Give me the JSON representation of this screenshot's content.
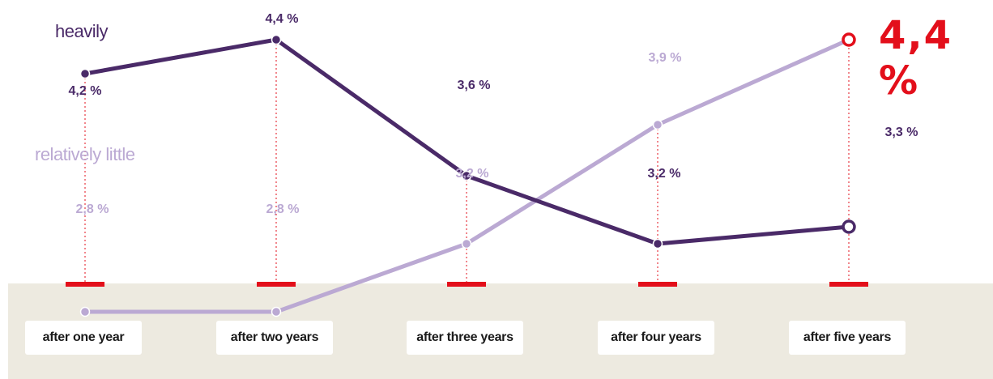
{
  "colors": {
    "heavily": "#4a2a68",
    "relatively_little": "#bba9d3",
    "accent": "#e30f1b",
    "ground": "#edeae0"
  },
  "legend": {
    "heavily": "heavily",
    "relatively_little": "relatively little"
  },
  "highlight": "4,4 %",
  "chart_data": {
    "type": "line",
    "categories": [
      "after one year",
      "after two years",
      "after three years",
      "after four years",
      "after five years"
    ],
    "series": [
      {
        "name": "heavily",
        "values": [
          4.2,
          4.4,
          3.6,
          3.2,
          3.3
        ],
        "labels": [
          "4,2 %",
          "4,4 %",
          "3,6 %",
          "3,2 %",
          "3,3 %"
        ]
      },
      {
        "name": "relatively little",
        "values": [
          2.8,
          2.8,
          3.2,
          3.9,
          4.4
        ],
        "labels": [
          "2,8 %",
          "2,8 %",
          "3,2 %",
          "3,9 %",
          "4,4 %"
        ]
      }
    ],
    "title": "",
    "xlabel": "",
    "ylabel": "",
    "grid": false,
    "legend": "left, next to the lines"
  }
}
